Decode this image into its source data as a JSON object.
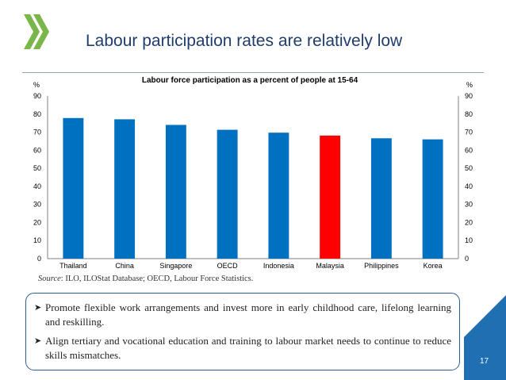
{
  "slide": {
    "title": "Labour participation rates are relatively low",
    "page_number": "17",
    "source_label": "Source",
    "source_text": ": ILO, ILOStat Database; OECD, Labour Force Statistics.",
    "bullets": [
      "Promote flexible work arrangements and invest more in early childhood care, lifelong learning and reskilling.",
      "Align tertiary and vocational education and training to labour market needs to continue to reduce skills mismatches."
    ]
  },
  "colors": {
    "bar": "#0070c0",
    "highlight": "#ff0000",
    "logo": "#7ab648",
    "corner": "#1f6fb2"
  },
  "chart_data": {
    "type": "bar",
    "title": "Labour force participation  as a percent of people  at 15-64",
    "ylabel_left": "%",
    "ylabel_right": "%",
    "categories": [
      "Thailand",
      "China",
      "Singapore",
      "OECD",
      "Indonesia",
      "Malaysia",
      "Philippines",
      "Korea"
    ],
    "values": [
      77.8,
      77.1,
      74.0,
      71.3,
      69.7,
      68.1,
      66.6,
      66.0
    ],
    "highlight": "Malaysia",
    "ylim": [
      0,
      90
    ],
    "yticks": [
      0,
      10,
      20,
      30,
      40,
      50,
      60,
      70,
      80,
      90
    ],
    "grid": false
  }
}
